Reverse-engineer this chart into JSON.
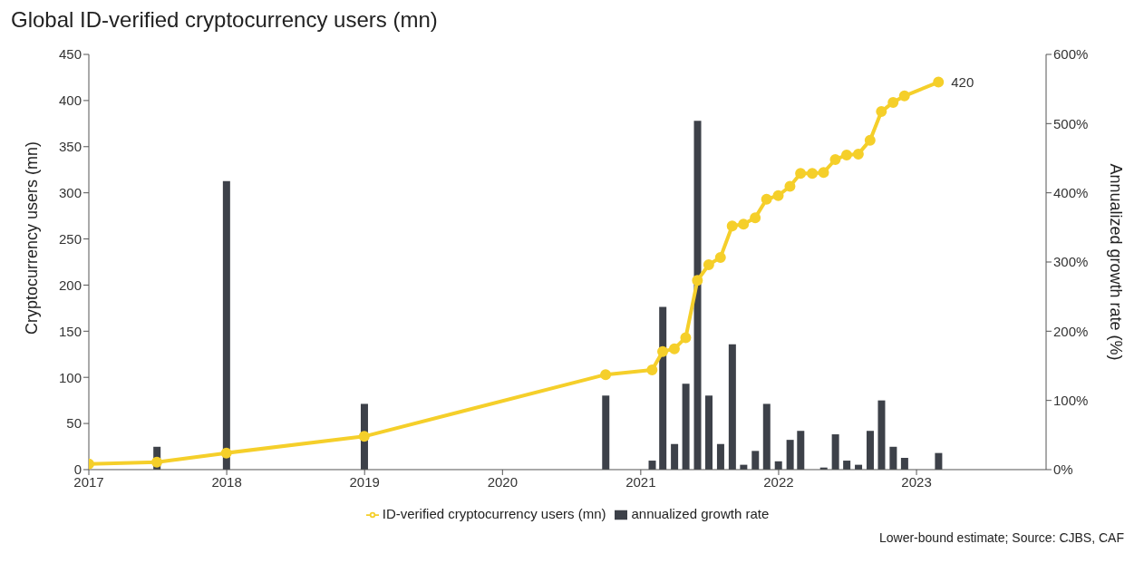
{
  "chart_data": {
    "type": "bar",
    "title": "Global ID-verified cryptocurrency users (mn)",
    "ylabel": "Cryptocurrency users (mn)",
    "y2label": "Annualized growth rate (%)",
    "annotations": [
      "Lower-bound estimate; Source: CJBS, CAF"
    ],
    "xlim": [
      "2017-01-01",
      "2023-12-10"
    ],
    "xticks": [
      "2017",
      "2018",
      "2019",
      "2020",
      "2021",
      "2022",
      "2023"
    ],
    "ylim": [
      0,
      450
    ],
    "yticks": [
      0,
      50,
      100,
      150,
      200,
      250,
      300,
      350,
      400,
      450
    ],
    "y2lim": [
      0,
      600
    ],
    "y2ticks": [
      {
        "value": 0,
        "label": "0%"
      },
      {
        "value": 100,
        "label": "100%"
      },
      {
        "value": 200,
        "label": "200%"
      },
      {
        "value": 300,
        "label": "300%"
      },
      {
        "value": 400,
        "label": "400%"
      },
      {
        "value": 500,
        "label": "500%"
      },
      {
        "value": 600,
        "label": "600%"
      }
    ],
    "grid": false,
    "legend": "bottom",
    "series": [
      {
        "name": "annualized growth rate",
        "axis": "y2",
        "color": "#3d4149",
        "x": [
          "2017-06-30",
          "2017-12-31",
          "2018-12-31",
          "2020-09-30",
          "2021-01-31",
          "2021-02-28",
          "2021-03-31",
          "2021-04-30",
          "2021-05-31",
          "2021-06-30",
          "2021-07-31",
          "2021-08-31",
          "2021-09-30",
          "2021-10-31",
          "2021-11-30",
          "2021-12-31",
          "2022-01-31",
          "2022-02-28",
          "2022-04-30",
          "2022-05-31",
          "2022-06-30",
          "2022-07-31",
          "2022-08-31",
          "2022-09-30",
          "2022-10-31",
          "2022-11-30",
          "2023-02-28"
        ],
        "values": [
          33,
          417,
          95,
          107,
          13,
          235,
          37,
          124,
          504,
          107,
          37,
          181,
          7,
          27,
          95,
          12,
          43,
          56,
          3,
          51,
          13,
          7,
          56,
          100,
          33,
          17,
          24
        ]
      },
      {
        "name": "ID-verified cryptocurrency users (mn)",
        "type": "line",
        "marker": "circle",
        "color": "#f5cf2a",
        "x": [
          "2017-01-01",
          "2017-06-30",
          "2017-12-31",
          "2018-12-31",
          "2020-09-30",
          "2021-01-31",
          "2021-02-28",
          "2021-03-31",
          "2021-04-30",
          "2021-05-31",
          "2021-06-30",
          "2021-07-31",
          "2021-08-31",
          "2021-09-30",
          "2021-10-31",
          "2021-11-30",
          "2021-12-31",
          "2022-01-31",
          "2022-02-28",
          "2022-03-31",
          "2022-04-30",
          "2022-05-31",
          "2022-06-30",
          "2022-07-31",
          "2022-08-31",
          "2022-09-30",
          "2022-10-31",
          "2022-11-30",
          "2023-02-28"
        ],
        "values": [
          6,
          8,
          18,
          36,
          103,
          108,
          128,
          131,
          143,
          205,
          222,
          230,
          264,
          266,
          273,
          293,
          297,
          307,
          321,
          321,
          322,
          336,
          341,
          342,
          357,
          388,
          398,
          405,
          420
        ],
        "value_labels": [
          null,
          null,
          null,
          null,
          null,
          null,
          null,
          null,
          null,
          null,
          null,
          null,
          null,
          null,
          null,
          null,
          null,
          null,
          null,
          null,
          null,
          null,
          null,
          null,
          null,
          null,
          null,
          null,
          "420"
        ]
      }
    ]
  }
}
